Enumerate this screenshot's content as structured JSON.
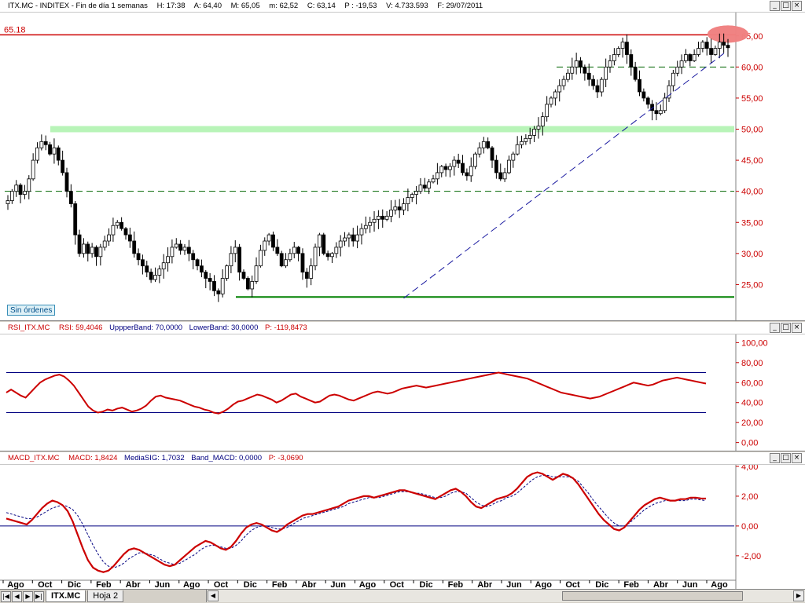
{
  "main_header": {
    "symbol": "ITX.MC - INDITEX - Fin de día 1 semanas",
    "time": "H: 17:38",
    "open": "A: 64,40",
    "high": "M: 65,05",
    "low": "m: 62,52",
    "close": "C: 63,14",
    "points": "P : -19,53",
    "volume": "V: 4.733.593",
    "date": "F: 29/07/2011"
  },
  "rsi_header": {
    "name": "RSI_ITX.MC",
    "value": "RSI: 59,4046",
    "upper": "UppperBand: 70,0000",
    "lower": "LowerBand: 30,0000",
    "points": "P: -119,8473"
  },
  "macd_header": {
    "name": "MACD_ITX.MC",
    "value": "MACD: 1,8424",
    "signal": "MediaSIG: 1,7032",
    "band": "Band_MACD: 0,0000",
    "points": "P: -3,0690"
  },
  "window_buttons": {
    "minimize": "_",
    "restore": "□",
    "close": "×"
  },
  "orders_label": "Sin órdenes",
  "tabs": [
    {
      "label": "ITX.MC",
      "active": true
    },
    {
      "label": "Hoja 2",
      "active": false
    }
  ],
  "colors": {
    "candle": "#000000",
    "resistance": "#cc0000",
    "support_band": "#b8f4b8",
    "support_low": "#008000",
    "dashed_green": "#006600",
    "trendline": "#1a1aa0",
    "rsi_line": "#cc0000",
    "band_line": "#000080",
    "macd_line": "#cc0000",
    "signal_line": "#000080",
    "axis_labels": "#cc0000",
    "highlight": "#f08080"
  },
  "chart_data": [
    {
      "type": "candlestick",
      "title": "ITX.MC - INDITEX",
      "y_ticks": [
        "65,00",
        "60,00",
        "55,00",
        "50,00",
        "45,00",
        "40,00",
        "35,00",
        "30,00",
        "25,00"
      ],
      "ylim": [
        20,
        68
      ],
      "resistance_label": "65.18",
      "levels": {
        "resistance": 65.18,
        "support_band": 50,
        "dashed_upper": 60,
        "dashed_lower": 40,
        "support_low": 23
      },
      "trendline": {
        "from_x_index": 94,
        "from_y": 22.8,
        "to_x_index": 233,
        "to_y": 62.5
      },
      "highlighted_peaks_x_index": [
        194,
        226
      ],
      "x_labels": [
        "Ago",
        "Oct",
        "Dic",
        "Feb",
        "Abr",
        "Jun",
        "Ago",
        "Oct",
        "Dic",
        "Feb",
        "Abr",
        "Jun",
        "Ago",
        "Oct",
        "Dic",
        "Feb",
        "Abr",
        "Jun",
        "Ago",
        "Oct",
        "Dic",
        "Feb",
        "Abr",
        "Jun",
        "Ago"
      ],
      "closes": [
        38.5,
        40,
        41,
        39.5,
        40,
        42,
        45,
        47,
        48,
        47.5,
        46,
        47,
        45,
        43,
        40,
        38,
        33,
        30,
        31.5,
        30,
        31,
        29.5,
        31,
        32,
        33,
        34.5,
        35,
        34,
        33,
        32,
        30,
        29,
        28,
        27,
        25.8,
        26.5,
        27.5,
        28.5,
        29.5,
        31,
        31.5,
        30.5,
        31,
        30,
        29,
        28,
        27,
        26,
        25.5,
        24,
        23.5,
        26,
        28,
        30,
        31,
        27,
        26,
        24.3,
        25.5,
        28,
        30.5,
        32,
        33,
        31,
        30,
        28,
        29,
        30,
        31,
        30,
        27,
        26,
        28,
        31,
        33,
        30,
        29.5,
        30,
        31,
        32,
        32.5,
        33,
        32,
        33,
        34,
        34.5,
        35,
        35.5,
        36,
        35.5,
        36,
        37,
        37.5,
        37,
        38,
        39,
        39.5,
        40,
        41,
        40.5,
        41.5,
        42,
        43,
        44,
        43.5,
        44,
        45,
        44.5,
        43,
        42.5,
        44,
        46,
        47,
        48,
        47,
        45,
        43,
        42,
        43,
        45,
        46,
        47.5,
        48,
        48.5,
        49,
        50,
        50.5,
        52,
        54,
        55,
        56,
        57,
        58,
        59,
        60,
        61,
        60,
        59,
        58,
        57,
        56,
        58,
        60,
        61,
        62,
        63,
        64,
        62,
        60,
        58,
        56,
        55,
        54,
        53,
        52.5,
        53,
        55,
        57,
        59,
        60,
        61,
        62,
        61,
        62,
        63,
        64,
        63,
        62,
        63,
        64,
        63.5,
        63.1
      ],
      "ohlc_note": "weekly candles drawn from closes with generated high/low wicks"
    },
    {
      "type": "line",
      "title": "RSI_ITX.MC",
      "y_ticks": [
        "100,00",
        "80,00",
        "60,00",
        "40,00",
        "20,00",
        "0,00"
      ],
      "ylim": [
        -5,
        105
      ],
      "bands": {
        "upper": 70,
        "lower": 30
      },
      "series": [
        {
          "name": "RSI",
          "values": [
            50,
            53,
            50,
            47,
            45,
            50,
            55,
            60,
            63,
            65,
            67,
            68,
            66,
            62,
            57,
            50,
            43,
            36,
            32,
            30,
            31,
            33,
            32,
            34,
            35,
            33,
            31,
            32,
            34,
            37,
            42,
            46,
            47,
            45,
            44,
            43,
            42,
            40,
            38,
            36,
            35,
            33,
            32,
            30,
            29,
            31,
            34,
            38,
            41,
            42,
            44,
            46,
            48,
            47,
            45,
            43,
            40,
            42,
            45,
            48,
            49,
            46,
            44,
            42,
            40,
            41,
            44,
            47,
            48,
            47,
            45,
            43,
            42,
            44,
            46,
            48,
            50,
            51,
            50,
            49,
            50,
            52,
            54,
            55,
            56,
            57,
            56,
            55,
            56,
            57,
            58,
            59,
            60,
            61,
            62,
            63,
            64,
            65,
            66,
            67,
            68,
            69,
            70,
            69,
            68,
            67,
            66,
            65,
            64,
            62,
            60,
            58,
            56,
            54,
            52,
            50,
            49,
            48,
            47,
            46,
            45,
            44,
            45,
            46,
            48,
            50,
            52,
            54,
            56,
            58,
            60,
            59,
            58,
            57,
            58,
            60,
            62,
            63,
            64,
            65,
            64,
            63,
            62,
            61,
            60,
            59
          ]
        }
      ]
    },
    {
      "type": "line",
      "title": "MACD_ITX.MC",
      "y_ticks": [
        "4,00",
        "2,00",
        "0,00",
        "-2,00"
      ],
      "ylim": [
        -3.8,
        4.0
      ],
      "zero_band": 0,
      "series": [
        {
          "name": "MACD",
          "values": [
            0.5,
            0.4,
            0.3,
            0.2,
            0.1,
            0.4,
            0.8,
            1.2,
            1.5,
            1.7,
            1.6,
            1.4,
            1.0,
            0.3,
            -0.6,
            -1.5,
            -2.3,
            -2.8,
            -3.0,
            -3.1,
            -3.0,
            -2.7,
            -2.3,
            -1.9,
            -1.6,
            -1.5,
            -1.6,
            -1.8,
            -2.0,
            -2.2,
            -2.4,
            -2.6,
            -2.7,
            -2.6,
            -2.3,
            -2.0,
            -1.7,
            -1.4,
            -1.2,
            -1.0,
            -1.1,
            -1.3,
            -1.5,
            -1.6,
            -1.4,
            -1.0,
            -0.5,
            -0.1,
            0.1,
            0.2,
            0.1,
            -0.1,
            -0.3,
            -0.4,
            -0.2,
            0.1,
            0.3,
            0.5,
            0.7,
            0.8,
            0.8,
            0.9,
            1.0,
            1.1,
            1.2,
            1.3,
            1.5,
            1.7,
            1.8,
            1.9,
            2.0,
            2.0,
            1.9,
            2.0,
            2.1,
            2.2,
            2.3,
            2.4,
            2.4,
            2.3,
            2.2,
            2.1,
            2.0,
            1.9,
            1.8,
            2.0,
            2.2,
            2.4,
            2.5,
            2.3,
            2.0,
            1.6,
            1.3,
            1.2,
            1.4,
            1.6,
            1.8,
            1.9,
            2.0,
            2.2,
            2.5,
            2.9,
            3.3,
            3.5,
            3.6,
            3.5,
            3.3,
            3.1,
            3.3,
            3.5,
            3.4,
            3.2,
            2.8,
            2.3,
            1.8,
            1.3,
            0.8,
            0.4,
            0.1,
            -0.2,
            -0.3,
            -0.1,
            0.3,
            0.7,
            1.1,
            1.4,
            1.6,
            1.8,
            1.9,
            1.8,
            1.7,
            1.7,
            1.8,
            1.8,
            1.9,
            1.9,
            1.85,
            1.84
          ]
        },
        {
          "name": "MediaSIG",
          "values": [
            0.9,
            0.8,
            0.7,
            0.6,
            0.5,
            0.5,
            0.6,
            0.8,
            1.0,
            1.2,
            1.3,
            1.4,
            1.3,
            1.1,
            0.7,
            0.1,
            -0.6,
            -1.3,
            -1.9,
            -2.4,
            -2.7,
            -2.8,
            -2.7,
            -2.5,
            -2.2,
            -2.0,
            -1.8,
            -1.8,
            -1.9,
            -2.0,
            -2.2,
            -2.4,
            -2.5,
            -2.6,
            -2.5,
            -2.3,
            -2.1,
            -1.9,
            -1.6,
            -1.4,
            -1.3,
            -1.3,
            -1.4,
            -1.5,
            -1.5,
            -1.3,
            -1.0,
            -0.6,
            -0.3,
            -0.1,
            0.0,
            0.0,
            -0.1,
            -0.2,
            -0.2,
            -0.1,
            0.1,
            0.3,
            0.5,
            0.6,
            0.7,
            0.8,
            0.9,
            1.0,
            1.1,
            1.2,
            1.3,
            1.5,
            1.6,
            1.7,
            1.8,
            1.9,
            1.9,
            1.9,
            2.0,
            2.1,
            2.2,
            2.3,
            2.3,
            2.3,
            2.2,
            2.2,
            2.1,
            2.0,
            1.9,
            1.9,
            2.0,
            2.2,
            2.3,
            2.3,
            2.2,
            1.9,
            1.6,
            1.4,
            1.3,
            1.4,
            1.6,
            1.7,
            1.9,
            2.0,
            2.2,
            2.5,
            2.8,
            3.1,
            3.3,
            3.4,
            3.4,
            3.3,
            3.3,
            3.3,
            3.3,
            3.2,
            3.0,
            2.6,
            2.2,
            1.7,
            1.3,
            0.9,
            0.5,
            0.2,
            0.0,
            0.0,
            0.2,
            0.5,
            0.8,
            1.1,
            1.3,
            1.5,
            1.6,
            1.7,
            1.7,
            1.7,
            1.7,
            1.7,
            1.8,
            1.8,
            1.75,
            1.7
          ]
        }
      ]
    }
  ]
}
